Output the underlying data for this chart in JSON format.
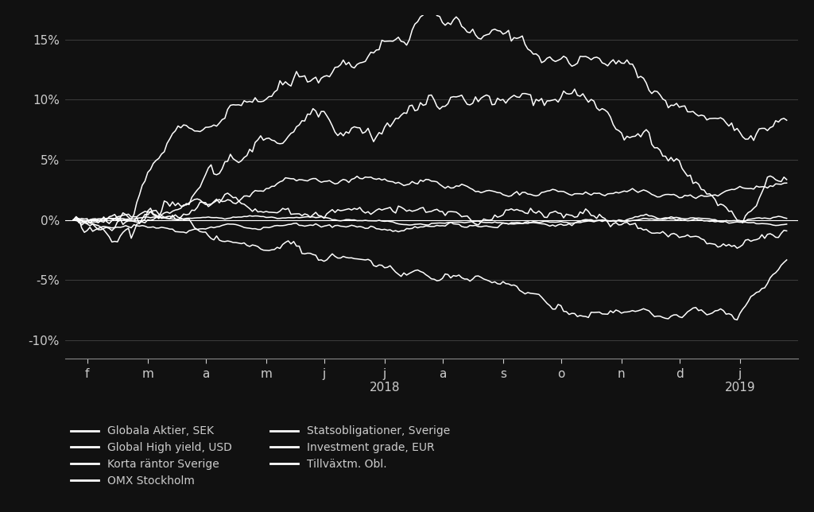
{
  "background_color": "#111111",
  "text_color": "#cccccc",
  "grid_color": "#444444",
  "line_color": "#ffffff",
  "axis_color": "#888888",
  "ylim": [
    -0.115,
    0.17
  ],
  "yticks": [
    -0.1,
    -0.05,
    0.0,
    0.05,
    0.1,
    0.15
  ],
  "ytick_labels": [
    "-10%",
    "-5%",
    "0%",
    "5%",
    "10%",
    "15%"
  ],
  "xlabel_2018": "2018",
  "xlabel_2019": "2019",
  "month_labels": [
    "f",
    "m",
    "a",
    "m",
    "j",
    "j",
    "a",
    "s",
    "o",
    "n",
    "d",
    "j"
  ],
  "legend_left": [
    "Globala Aktier, SEK",
    "Global High yield, USD",
    "Korta räntor Sverige",
    "OMX Stockholm"
  ],
  "legend_right": [
    "Statsobligationer, Sverige",
    "Investment grade, EUR",
    "Tillväxtm. Obl."
  ],
  "n_points": 260
}
